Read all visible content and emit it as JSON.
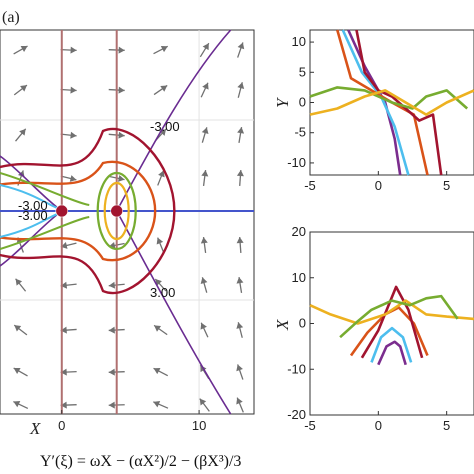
{
  "panel_label": "(a)",
  "equation": "Y′(ξ) = ωX − (αX²)/2 − (βX³)/3",
  "colors": {
    "c1": "#7B2D8E",
    "c2": "#4DBEEE",
    "c3": "#EDB120",
    "c4": "#D95319",
    "c5": "#77AC30",
    "c6": "#A2142F",
    "separatrix": "#6A2C91",
    "axis_line": "#4455CC",
    "vertical_line": "#B07070",
    "arrow": "#707070",
    "point": "#A2142F"
  },
  "chart_data": [
    {
      "type": "phase_portrait",
      "title": "",
      "xlabel": "X",
      "ylabel": "",
      "xlim": [
        -4.5,
        14
      ],
      "x_ticks": [
        0,
        10
      ],
      "grid": true,
      "equilibria": [
        {
          "x": 0,
          "y": 0
        },
        {
          "x": 4,
          "y": 0
        }
      ],
      "contour_labels": [
        {
          "text": "-3.00",
          "x": 10,
          "y": 6.0
        },
        {
          "text": "-3.00",
          "x": 0,
          "y": -0.4
        },
        {
          "text": "-3.00",
          "x": 0,
          "y": -0.9
        },
        {
          "text": "3.00",
          "x": 10,
          "y": -6.0
        }
      ]
    },
    {
      "type": "line",
      "xlabel": "",
      "ylabel": "Y",
      "xlim": [
        -5,
        7
      ],
      "ylim": [
        -12,
        12
      ],
      "x_ticks": [
        -5,
        0,
        5
      ],
      "y_ticks": [
        10,
        5,
        0,
        -5,
        -10
      ],
      "grid": false
    },
    {
      "type": "line",
      "xlabel": "",
      "ylabel": "X",
      "xlim": [
        -5,
        7
      ],
      "ylim": [
        -20,
        20
      ],
      "x_ticks": [
        -5,
        0,
        5
      ],
      "y_ticks": [
        20,
        10,
        0,
        -10,
        -20
      ],
      "grid": false,
      "series": [
        {
          "color": "c1",
          "x": [
            0.0,
            0.6,
            1.2,
            1.6,
            2.0
          ],
          "y": [
            -9.0,
            -5.0,
            -4.0,
            -5.0,
            -9.0
          ]
        },
        {
          "color": "c2",
          "x": [
            -0.5,
            0.2,
            1.0,
            1.8,
            2.4
          ],
          "y": [
            -8.5,
            -3.0,
            -1.0,
            -3.0,
            -8.5
          ]
        },
        {
          "color": "c4",
          "x": [
            -2.0,
            -0.8,
            0.5,
            1.5,
            2.6,
            3.6
          ],
          "y": [
            -7.0,
            -2.0,
            2.0,
            3.5,
            0.0,
            -7.0
          ]
        },
        {
          "color": "c6",
          "x": [
            -1.2,
            0.0,
            1.3,
            2.2,
            3.2
          ],
          "y": [
            -7.5,
            -1.5,
            8.0,
            3.0,
            -7.5
          ]
        },
        {
          "color": "c3",
          "x": [
            -5.0,
            -3.5,
            -1.5,
            0.5,
            2.0,
            3.5,
            5.0,
            7.0
          ],
          "y": [
            4.0,
            2.0,
            0.0,
            2.0,
            5.0,
            2.0,
            1.5,
            1.0
          ]
        },
        {
          "color": "c5",
          "x": [
            -2.8,
            -1.5,
            -0.5,
            1.0,
            2.3,
            3.5,
            4.6,
            5.8
          ],
          "y": [
            -3.0,
            0.5,
            3.0,
            5.0,
            4.0,
            5.5,
            6.0,
            1.0
          ]
        }
      ]
    }
  ]
}
